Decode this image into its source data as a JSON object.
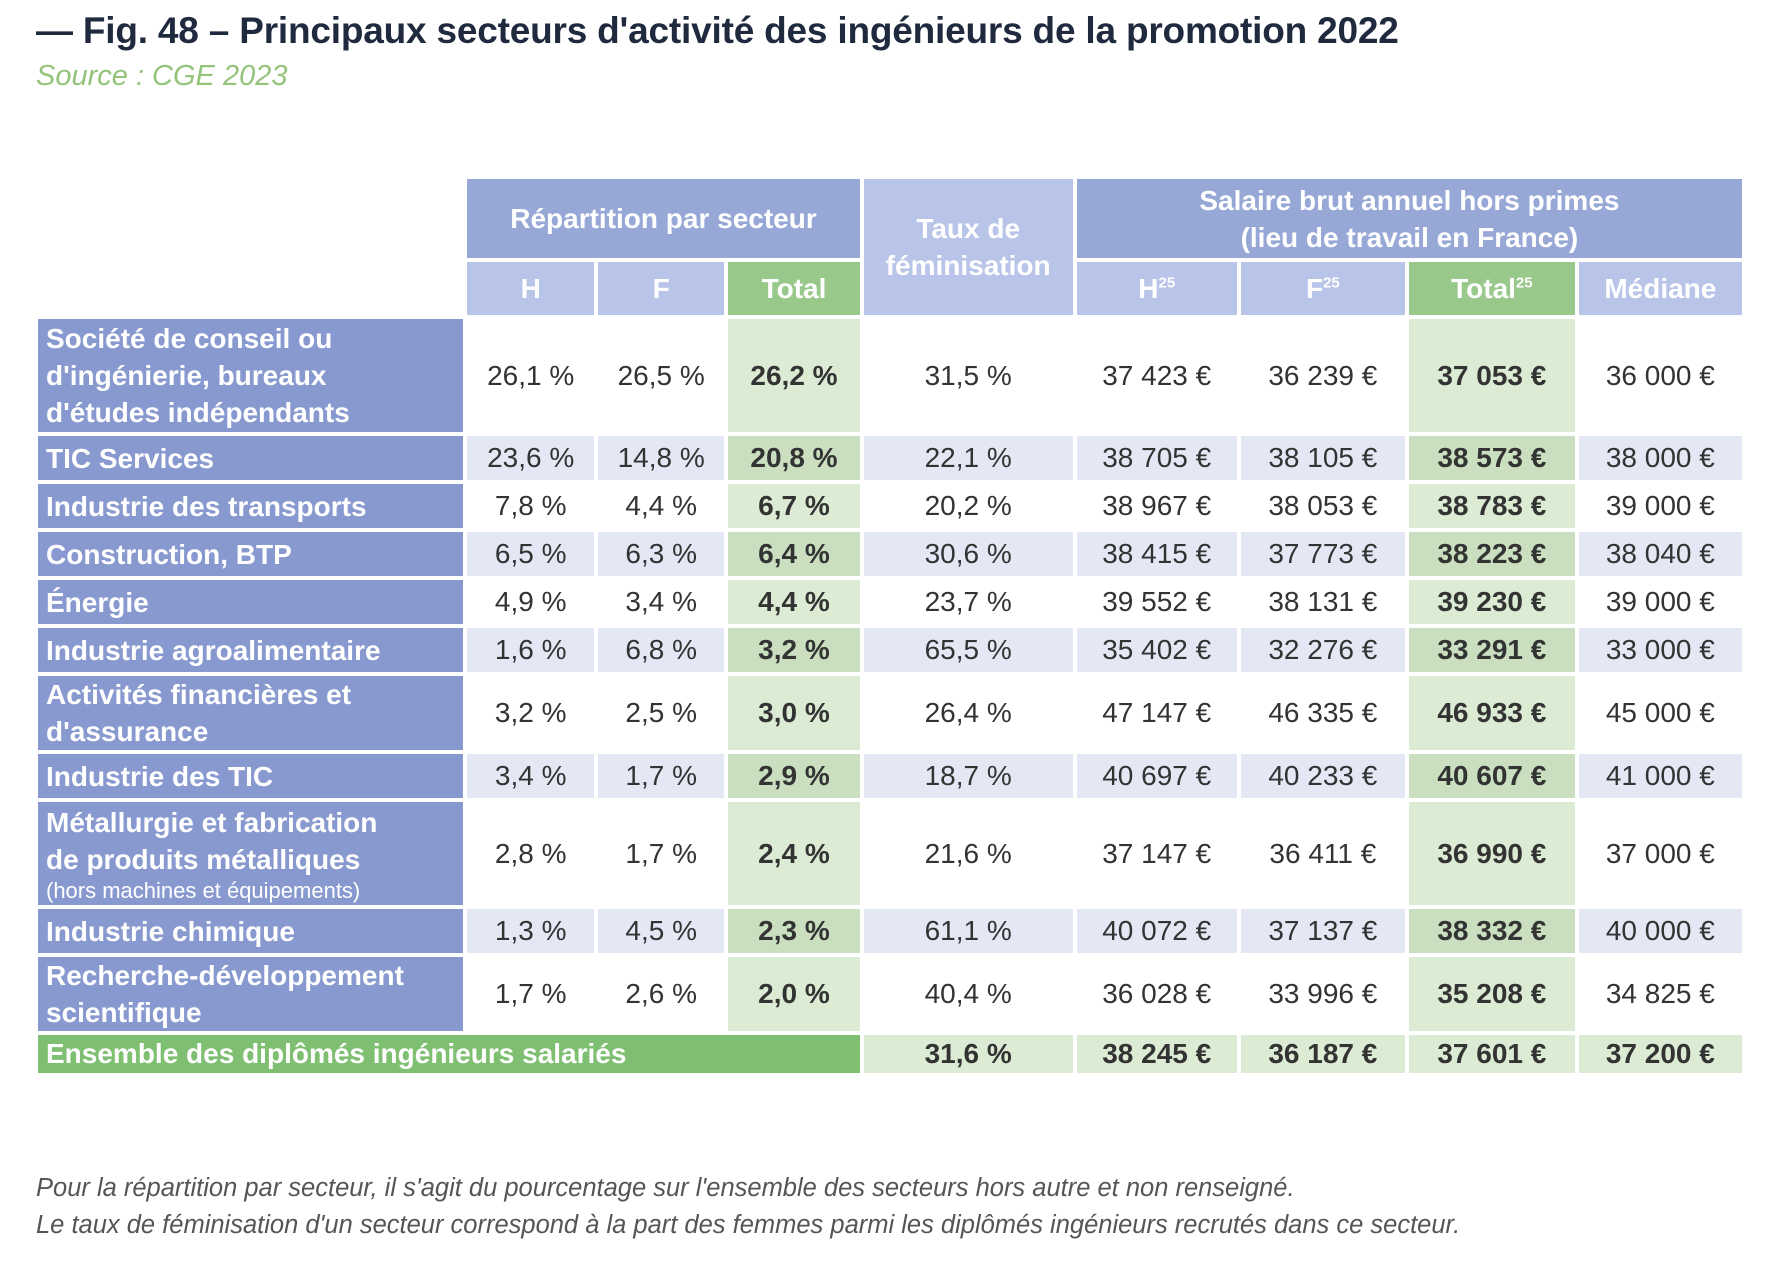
{
  "title": "— Fig. 48 – Principaux secteurs d'activité des ingénieurs de la promotion 2022",
  "source": "Source : CGE 2023",
  "header": {
    "group_repartition": "Répartition par secteur",
    "feminisation_line1": "Taux de",
    "feminisation_line2": "féminisation",
    "group_salaire_line1": "Salaire brut annuel hors primes",
    "group_salaire_line2": "(lieu de travail en France)",
    "col_h": "H",
    "col_f": "F",
    "col_total": "Total",
    "col_h25": "H",
    "col_f25": "F",
    "col_total25": "Total",
    "footnote_mark": "25",
    "col_mediane": "Médiane"
  },
  "notes": {
    "line1": "Pour la répartition par secteur, il s'agit du pourcentage sur l'ensemble des secteurs hors autre et non renseigné.",
    "line2": "Le taux de féminisation d'un secteur  correspond à la part des femmes parmi les diplômés ingénieurs recrutés dans ce secteur."
  },
  "chart_data": {
    "type": "table",
    "title": "Fig. 48 – Principaux secteurs d'activité des ingénieurs de la promotion 2022",
    "columns": [
      "Répartition H",
      "Répartition F",
      "Répartition Total",
      "Taux de féminisation",
      "Salaire H",
      "Salaire F",
      "Salaire Total",
      "Médiane"
    ],
    "rows": [
      {
        "label_lines": [
          "Société de conseil ou",
          "d'ingénierie, bureaux",
          "d'études indépendants"
        ],
        "note": "",
        "cells": [
          "26,1 %",
          "26,5 %",
          "26,2 %",
          "31,5 %",
          "37 423 €",
          "36 239 €",
          "37 053 €",
          "36 000 €"
        ]
      },
      {
        "label_lines": [
          "TIC Services"
        ],
        "note": "",
        "cells": [
          "23,6 %",
          "14,8 %",
          "20,8 %",
          "22,1 %",
          "38 705 €",
          "38 105 €",
          "38 573 €",
          "38 000 €"
        ]
      },
      {
        "label_lines": [
          "Industrie des transports"
        ],
        "note": "",
        "cells": [
          "7,8 %",
          "4,4 %",
          "6,7 %",
          "20,2 %",
          "38 967 €",
          "38 053 €",
          "38 783 €",
          "39 000 €"
        ]
      },
      {
        "label_lines": [
          "Construction, BTP"
        ],
        "note": "",
        "cells": [
          "6,5 %",
          "6,3 %",
          "6,4 %",
          "30,6 %",
          "38 415 €",
          "37 773 €",
          "38 223 €",
          "38 040 €"
        ]
      },
      {
        "label_lines": [
          "Énergie"
        ],
        "note": "",
        "cells": [
          "4,9 %",
          "3,4 %",
          "4,4 %",
          "23,7 %",
          "39 552 €",
          "38 131 €",
          "39 230 €",
          "39 000 €"
        ]
      },
      {
        "label_lines": [
          "Industrie agroalimentaire"
        ],
        "note": "",
        "cells": [
          "1,6 %",
          "6,8 %",
          "3,2 %",
          "65,5 %",
          "35 402 €",
          "32 276 €",
          "33 291 €",
          "33 000 €"
        ]
      },
      {
        "label_lines": [
          "Activités financières et",
          "d'assurance"
        ],
        "note": "",
        "cells": [
          "3,2 %",
          "2,5 %",
          "3,0 %",
          "26,4 %",
          "47 147 €",
          "46 335 €",
          "46 933 €",
          "45 000 €"
        ]
      },
      {
        "label_lines": [
          "Industrie des TIC"
        ],
        "note": "",
        "cells": [
          "3,4 %",
          "1,7 %",
          "2,9 %",
          "18,7 %",
          "40 697 €",
          "40 233 €",
          "40 607 €",
          "41 000 €"
        ]
      },
      {
        "label_lines": [
          "Métallurgie et fabrication",
          "de produits métalliques"
        ],
        "note": "(hors machines et équipements)",
        "cells": [
          "2,8 %",
          "1,7 %",
          "2,4 %",
          "21,6 %",
          "37 147 €",
          "36 411 €",
          "36 990 €",
          "37 000 €"
        ]
      },
      {
        "label_lines": [
          "Industrie chimique"
        ],
        "note": "",
        "cells": [
          "1,3 %",
          "4,5 %",
          "2,3 %",
          "61,1 %",
          "40 072 €",
          "37 137 €",
          "38 332 €",
          "40 000 €"
        ]
      },
      {
        "label_lines": [
          "Recherche-développement",
          "scientifique"
        ],
        "note": "",
        "cells": [
          "1,7 %",
          "2,6 %",
          "2,0 %",
          "40,4 %",
          "36 028 €",
          "33 996 €",
          "35 208 €",
          "34 825 €"
        ]
      }
    ],
    "total_row": {
      "label": "Ensemble des diplômés ingénieurs salariés",
      "cells": [
        "31,6 %",
        "38 245 €",
        "36 187 €",
        "37 601 €",
        "37 200 €"
      ]
    }
  }
}
